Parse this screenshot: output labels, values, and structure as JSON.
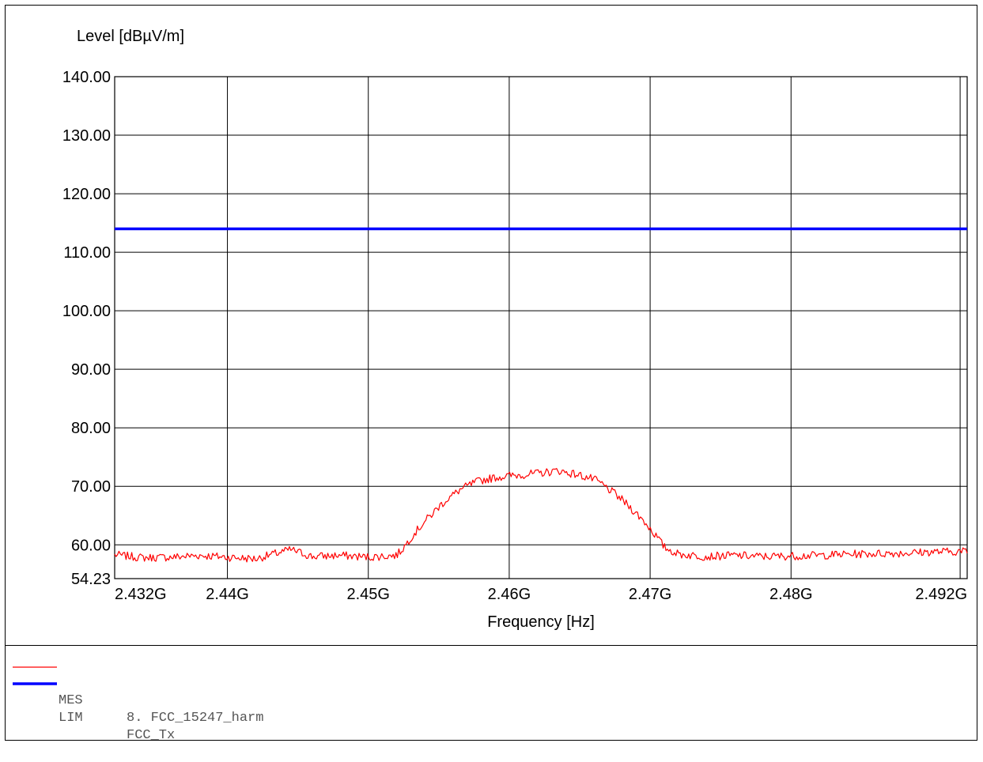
{
  "chart_data": {
    "type": "line",
    "ylabel": "Level [dBµV/m]",
    "xlabel": "Frequency [Hz]",
    "xlim": [
      2432000000.0,
      2492500000.0
    ],
    "ylim": [
      54.23,
      140
    ],
    "x_ticks": [
      {
        "value": 2432000000.0,
        "label": "2.432G"
      },
      {
        "value": 2440000000.0,
        "label": "2.44G"
      },
      {
        "value": 2450000000.0,
        "label": "2.45G"
      },
      {
        "value": 2460000000.0,
        "label": "2.46G"
      },
      {
        "value": 2470000000.0,
        "label": "2.47G"
      },
      {
        "value": 2480000000.0,
        "label": "2.48G"
      },
      {
        "value": 2492000000.0,
        "label": "2.492G"
      }
    ],
    "y_ticks": [
      {
        "value": 54.23,
        "label": "54.23"
      },
      {
        "value": 60,
        "label": "60.00"
      },
      {
        "value": 70,
        "label": "70.00"
      },
      {
        "value": 80,
        "label": "80.00"
      },
      {
        "value": 90,
        "label": "90.00"
      },
      {
        "value": 100,
        "label": "100.00"
      },
      {
        "value": 110,
        "label": "110.00"
      },
      {
        "value": 120,
        "label": "120.00"
      },
      {
        "value": 130,
        "label": "130.00"
      },
      {
        "value": 140,
        "label": "140.00"
      }
    ],
    "x_gridlines": [
      2440000000.0,
      2450000000.0,
      2460000000.0,
      2470000000.0,
      2480000000.0,
      2492000000.0
    ],
    "y_gridlines": [
      60,
      70,
      80,
      90,
      100,
      110,
      120,
      130
    ],
    "grid": true,
    "series": [
      {
        "name": "MES",
        "color": "#ff0000",
        "x": [
          2432000000.0,
          2434000000.0,
          2436000000.0,
          2438000000.0,
          2440000000.0,
          2442000000.0,
          2444500000.0,
          2446000000.0,
          2448000000.0,
          2450000000.0,
          2452000000.0,
          2452500000.0,
          2453000000.0,
          2453500000.0,
          2454000000.0,
          2454500000.0,
          2455000000.0,
          2455500000.0,
          2456000000.0,
          2456500000.0,
          2457000000.0,
          2457500000.0,
          2458000000.0,
          2459000000.0,
          2460000000.0,
          2461000000.0,
          2462000000.0,
          2463000000.0,
          2463500000.0,
          2464000000.0,
          2465000000.0,
          2466000000.0,
          2466500000.0,
          2467000000.0,
          2467500000.0,
          2468000000.0,
          2468500000.0,
          2469000000.0,
          2469500000.0,
          2470000000.0,
          2470500000.0,
          2471000000.0,
          2472000000.0,
          2474000000.0,
          2476000000.0,
          2478000000.0,
          2480000000.0,
          2482000000.0,
          2484000000.0,
          2486000000.0,
          2488000000.0,
          2490000000.0,
          2492500000.0
        ],
        "values": [
          58.3,
          57.8,
          57.9,
          58.2,
          57.9,
          57.6,
          59.2,
          58.0,
          58.2,
          57.9,
          58.2,
          59.5,
          61.2,
          62.6,
          64.0,
          65.2,
          66.5,
          67.6,
          68.5,
          69.4,
          70.0,
          70.6,
          71.0,
          71.5,
          71.8,
          72.0,
          72.2,
          72.5,
          72.7,
          72.4,
          71.9,
          71.2,
          70.5,
          69.6,
          68.7,
          67.7,
          66.6,
          65.4,
          64.2,
          62.8,
          61.3,
          59.6,
          58.4,
          58.0,
          58.2,
          58.0,
          58.1,
          58.2,
          58.4,
          58.5,
          58.6,
          58.8,
          58.9
        ]
      },
      {
        "name": "LIM",
        "color": "#0000ff",
        "x": [
          2432000000.0,
          2492500000.0
        ],
        "values": [
          114,
          114
        ]
      }
    ]
  },
  "legend": [
    {
      "code": "MES",
      "name": "8. FCC_15247_harm",
      "color": "#ff0000"
    },
    {
      "code": "LIM",
      "name": "FCC_Tx",
      "color": "#0000ff"
    }
  ]
}
